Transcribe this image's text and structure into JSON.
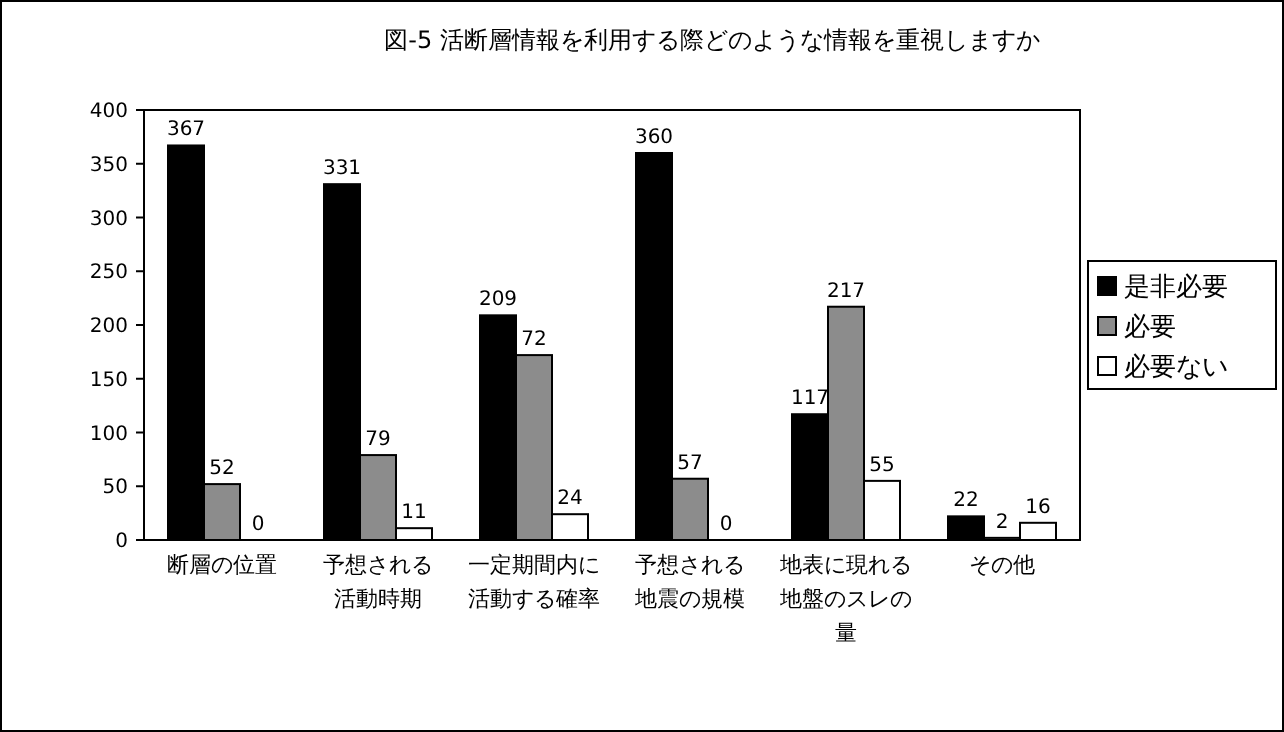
{
  "chart_data": {
    "type": "bar",
    "title": "図-5  活断層情報を利用する際どのような情報を重視しますか",
    "categories": [
      "断層の位置",
      "予想される活動時期",
      "一定期間内に活動する確率",
      "予想される地震の規模",
      "地表に現れる地盤のスレの量",
      "その他"
    ],
    "series": [
      {
        "name": "是非必要",
        "color": "#000000",
        "values": [
          367,
          331,
          209,
          360,
          117,
          22
        ]
      },
      {
        "name": "必要",
        "color": "#8c8c8c",
        "values": [
          52,
          79,
          172,
          57,
          217,
          2
        ]
      },
      {
        "name": "必要ない",
        "color": "#ffffff",
        "values": [
          0,
          11,
          24,
          0,
          55,
          16
        ]
      }
    ],
    "value_labels": [
      [
        "367",
        "331",
        "209",
        "360",
        "117",
        "22"
      ],
      [
        "52",
        "79",
        "72",
        "57",
        "217",
        "2"
      ],
      [
        "0",
        "11",
        "24",
        "0",
        "55",
        "16"
      ]
    ],
    "ylim": [
      0,
      400
    ],
    "yticks": [
      0,
      50,
      100,
      150,
      200,
      250,
      300,
      350,
      400
    ],
    "grid": false,
    "legend": "right"
  }
}
